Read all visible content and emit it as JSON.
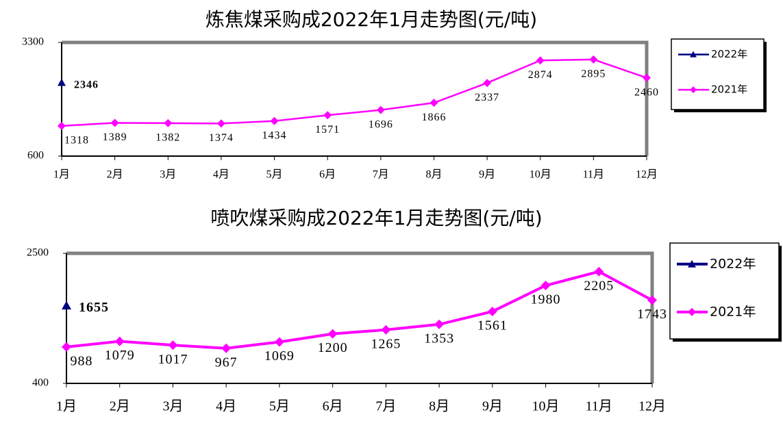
{
  "chart_data": [
    {
      "type": "line",
      "title": "炼焦煤采购成2022年1月走势图(元/吨)",
      "categories": [
        "1月",
        "2月",
        "3月",
        "4月",
        "5月",
        "6月",
        "7月",
        "8月",
        "9月",
        "10月",
        "11月",
        "12月"
      ],
      "series": [
        {
          "name": "2022年",
          "color": "#000080",
          "marker": "triangle",
          "values": [
            2346,
            null,
            null,
            null,
            null,
            null,
            null,
            null,
            null,
            null,
            null,
            null
          ]
        },
        {
          "name": "2021年",
          "color": "#ff00ff",
          "marker": "diamond",
          "values": [
            1318,
            1389,
            1382,
            1374,
            1434,
            1571,
            1696,
            1866,
            2337,
            2874,
            2895,
            2460
          ]
        }
      ],
      "ylim": [
        600,
        3300
      ],
      "yticks": [
        600,
        3300
      ],
      "data_labels": true,
      "legend": "right"
    },
    {
      "type": "line",
      "title": "喷吹煤采购成2022年1月走势图(元/吨)",
      "categories": [
        "1月",
        "2月",
        "3月",
        "4月",
        "5月",
        "6月",
        "7月",
        "8月",
        "9月",
        "10月",
        "11月",
        "12月"
      ],
      "series": [
        {
          "name": "2022年",
          "color": "#000080",
          "marker": "triangle",
          "values": [
            1655,
            null,
            null,
            null,
            null,
            null,
            null,
            null,
            null,
            null,
            null,
            null
          ]
        },
        {
          "name": "2021年",
          "color": "#ff00ff",
          "marker": "diamond",
          "values": [
            988,
            1079,
            1017,
            967,
            1069,
            1200,
            1265,
            1353,
            1561,
            1980,
            2205,
            1743
          ]
        }
      ],
      "ylim": [
        400,
        2500
      ],
      "yticks": [
        400,
        2500
      ],
      "data_labels": true,
      "legend": "right"
    }
  ]
}
